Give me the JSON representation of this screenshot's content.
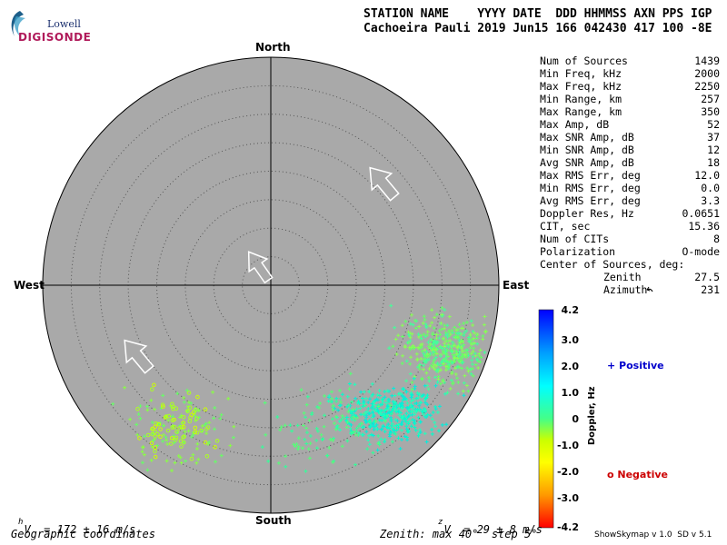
{
  "logo": {
    "line1": "Lowell",
    "line2": "DIGISONDE"
  },
  "header": {
    "line1": "STATION NAME    YYYY DATE  DDD HHMMSS AXN PPS IGP",
    "line2": "Cachoeira Pauli 2019 Jun15 166 042430 417 100 -8E"
  },
  "directions": {
    "north": "North",
    "south": "South",
    "west": "West",
    "east": "East"
  },
  "stats": [
    {
      "label": "Num of Sources",
      "value": "1439"
    },
    {
      "label": "Min Freq, kHz",
      "value": "2000"
    },
    {
      "label": "Max Freq, kHz",
      "value": "2250"
    },
    {
      "label": "Min Range, km",
      "value": "257"
    },
    {
      "label": "Max Range, km",
      "value": "350"
    },
    {
      "label": "Max Amp, dB",
      "value": "52"
    },
    {
      "label": "Max SNR Amp, dB",
      "value": "37"
    },
    {
      "label": "Min SNR Amp, dB",
      "value": "12"
    },
    {
      "label": "Avg SNR Amp, dB",
      "value": "18"
    },
    {
      "label": "Max RMS Err, deg",
      "value": "12.0"
    },
    {
      "label": "Min RMS Err, deg",
      "value": "0.0"
    },
    {
      "label": "Avg RMS Err, deg",
      "value": "3.3"
    },
    {
      "label": "Doppler Res, Hz",
      "value": "0.0651"
    },
    {
      "label": "CIT, sec",
      "value": "15.36"
    },
    {
      "label": "Num of CITs",
      "value": "8"
    },
    {
      "label": "Polarization",
      "value": "O-mode"
    },
    {
      "label": "Center of Sources, deg:",
      "value": ""
    }
  ],
  "center": {
    "zenith_label": "Zenith",
    "zenith_value": "27.5",
    "azimuth_label": "Azimuth",
    "azimuth_value": "231"
  },
  "colorbar": {
    "ticks": [
      "4.2",
      "3.0",
      "2.0",
      "1.0",
      "0",
      "-1.0",
      "-2.0",
      "-3.0",
      "-4.2"
    ],
    "title": "Doppler, Hz",
    "positive_label": "+ Positive",
    "negative_label": "o Negative"
  },
  "footer": {
    "vh": "V  = 172 ± 16 m/s",
    "vh_sub": "h",
    "vz": "V  = 29 ± 8 m/s",
    "vz_sub": "z",
    "coords": "Geographic coordinates",
    "zenith_info": "Zenith: max 40°  step 5°",
    "version": "ShowSkymap v 1.0  SD v 5.1"
  },
  "colors": {
    "disk": "#a9a9a9",
    "positive": "#0000cc",
    "negative": "#cc0000"
  }
}
